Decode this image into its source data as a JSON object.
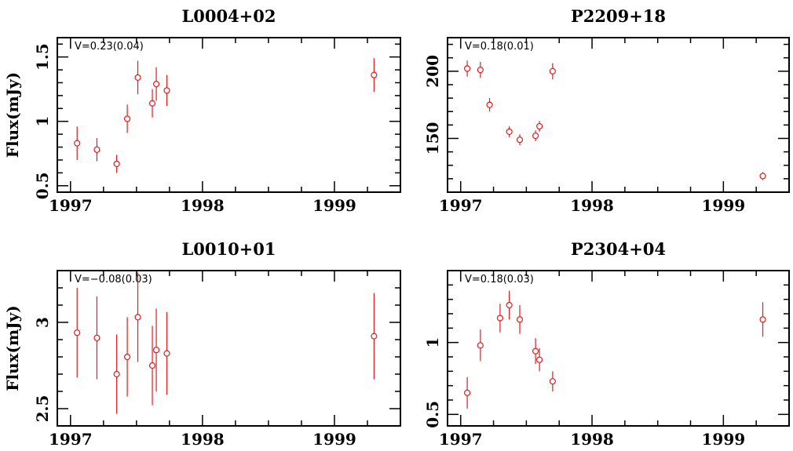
{
  "colors": {
    "data": "#e41a1c",
    "axis": "#000000"
  },
  "chart_data": [
    {
      "type": "scatter",
      "title": "L0004+02",
      "ylabel": "Flux(mJy)",
      "annotation": "V=0.23(0.04)",
      "xlim": [
        1996.9,
        1999.5
      ],
      "ylim": [
        0.45,
        1.65
      ],
      "xticks": [
        1997,
        1998,
        1999
      ],
      "xtick_labels": [
        "1997",
        "1998",
        "1999"
      ],
      "yticks": [
        0.5,
        1,
        1.5
      ],
      "ytick_labels": [
        "0.5",
        "1",
        "1.5"
      ],
      "y_minor": [
        0.6,
        0.7,
        0.8,
        0.9,
        1.1,
        1.2,
        1.3,
        1.4,
        1.6
      ],
      "points": [
        {
          "x": 1997.05,
          "y": 0.83,
          "err": 0.13
        },
        {
          "x": 1997.2,
          "y": 0.78,
          "err": 0.09
        },
        {
          "x": 1997.35,
          "y": 0.67,
          "err": 0.07
        },
        {
          "x": 1997.43,
          "y": 1.02,
          "err": 0.11
        },
        {
          "x": 1997.51,
          "y": 1.34,
          "err": 0.13
        },
        {
          "x": 1997.62,
          "y": 1.14,
          "err": 0.11
        },
        {
          "x": 1997.65,
          "y": 1.29,
          "err": 0.13
        },
        {
          "x": 1997.73,
          "y": 1.24,
          "err": 0.12
        },
        {
          "x": 1999.3,
          "y": 1.36,
          "err": 0.13
        }
      ]
    },
    {
      "type": "scatter",
      "title": "P2209+18",
      "ylabel": "",
      "annotation": "V=0.18(0.01)",
      "xlim": [
        1996.9,
        1999.5
      ],
      "ylim": [
        110,
        225
      ],
      "xticks": [
        1997,
        1998,
        1999
      ],
      "xtick_labels": [
        "1997",
        "1998",
        "1999"
      ],
      "yticks": [
        150,
        200
      ],
      "ytick_labels": [
        "150",
        "200"
      ],
      "y_minor": [
        110,
        120,
        130,
        140,
        160,
        170,
        180,
        190,
        210,
        220
      ],
      "points": [
        {
          "x": 1997.05,
          "y": 202,
          "err": 6
        },
        {
          "x": 1997.15,
          "y": 201,
          "err": 6
        },
        {
          "x": 1997.22,
          "y": 175,
          "err": 5
        },
        {
          "x": 1997.37,
          "y": 155,
          "err": 4
        },
        {
          "x": 1997.45,
          "y": 149,
          "err": 4
        },
        {
          "x": 1997.57,
          "y": 152,
          "err": 4
        },
        {
          "x": 1997.6,
          "y": 159,
          "err": 4
        },
        {
          "x": 1997.7,
          "y": 200,
          "err": 6
        },
        {
          "x": 1999.3,
          "y": 122,
          "err": 3
        }
      ]
    },
    {
      "type": "scatter",
      "title": "L0010+01",
      "ylabel": "Flux(mJy)",
      "annotation": "V=−0.08(0.03)",
      "xlim": [
        1996.9,
        1999.5
      ],
      "ylim": [
        2.4,
        3.3
      ],
      "xticks": [
        1997,
        1998,
        1999
      ],
      "xtick_labels": [
        "1997",
        "1998",
        "1999"
      ],
      "yticks": [
        2.5,
        3
      ],
      "ytick_labels": [
        "2.5",
        "3"
      ],
      "y_minor": [
        2.6,
        2.7,
        2.8,
        2.9,
        3.1,
        3.2
      ],
      "points": [
        {
          "x": 1997.05,
          "y": 2.94,
          "err": 0.26
        },
        {
          "x": 1997.2,
          "y": 2.91,
          "err": 0.24
        },
        {
          "x": 1997.35,
          "y": 2.7,
          "err": 0.23
        },
        {
          "x": 1997.43,
          "y": 2.8,
          "err": 0.23
        },
        {
          "x": 1997.51,
          "y": 3.03,
          "err": 0.26
        },
        {
          "x": 1997.62,
          "y": 2.75,
          "err": 0.23
        },
        {
          "x": 1997.65,
          "y": 2.84,
          "err": 0.24
        },
        {
          "x": 1997.73,
          "y": 2.82,
          "err": 0.24
        },
        {
          "x": 1999.3,
          "y": 2.92,
          "err": 0.25
        }
      ]
    },
    {
      "type": "scatter",
      "title": "P2304+04",
      "ylabel": "",
      "annotation": "V=0.18(0.03)",
      "xlim": [
        1996.9,
        1999.5
      ],
      "ylim": [
        0.42,
        1.5
      ],
      "xticks": [
        1997,
        1998,
        1999
      ],
      "xtick_labels": [
        "1997",
        "1998",
        "1999"
      ],
      "yticks": [
        0.5,
        1
      ],
      "ytick_labels": [
        "0.5",
        "1"
      ],
      "y_minor": [
        0.6,
        0.7,
        0.8,
        0.9,
        1.1,
        1.2,
        1.3,
        1.4
      ],
      "points": [
        {
          "x": 1997.05,
          "y": 0.65,
          "err": 0.11
        },
        {
          "x": 1997.15,
          "y": 0.98,
          "err": 0.11
        },
        {
          "x": 1997.3,
          "y": 1.17,
          "err": 0.1
        },
        {
          "x": 1997.37,
          "y": 1.26,
          "err": 0.1
        },
        {
          "x": 1997.45,
          "y": 1.16,
          "err": 0.1
        },
        {
          "x": 1997.57,
          "y": 0.94,
          "err": 0.09
        },
        {
          "x": 1997.6,
          "y": 0.88,
          "err": 0.08
        },
        {
          "x": 1997.7,
          "y": 0.73,
          "err": 0.07
        },
        {
          "x": 1999.3,
          "y": 1.16,
          "err": 0.12
        }
      ]
    }
  ]
}
